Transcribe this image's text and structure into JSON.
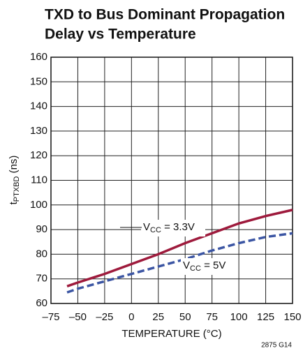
{
  "chart_data": {
    "type": "line",
    "title": [
      "TXD to Bus Dominant Propagation",
      "Delay vs Temperature"
    ],
    "xlabel": "TEMPERATURE (°C)",
    "ylabel": [
      "t",
      "PTXBD",
      " (ns)"
    ],
    "footnote": "2875 G14",
    "x": [
      -60,
      -50,
      -25,
      0,
      25,
      50,
      75,
      100,
      125,
      150
    ],
    "series": [
      {
        "label": [
          "V",
          "CC",
          " = 3.3V"
        ],
        "color": "#9e1a3c",
        "dash": false,
        "values": [
          67,
          68.5,
          72,
          76,
          80,
          84.5,
          88.5,
          92.5,
          95.5,
          98
        ]
      },
      {
        "label": [
          "V",
          "CC",
          " = 5V"
        ],
        "color": "#3b55a3",
        "dash": true,
        "values": [
          64.5,
          66,
          69,
          72,
          75,
          78,
          81.5,
          84.5,
          87,
          88.5
        ]
      }
    ],
    "xlim": [
      -75,
      150
    ],
    "xticks": [
      {
        "value": -75,
        "label": "–75"
      },
      {
        "value": -50,
        "label": "–50"
      },
      {
        "value": -25,
        "label": "–25"
      },
      0,
      25,
      50,
      75,
      100,
      125,
      150
    ],
    "ylim": [
      60,
      160
    ],
    "yticks": [
      60,
      70,
      80,
      90,
      100,
      110,
      120,
      130,
      140,
      150,
      160
    ],
    "grid": true
  }
}
